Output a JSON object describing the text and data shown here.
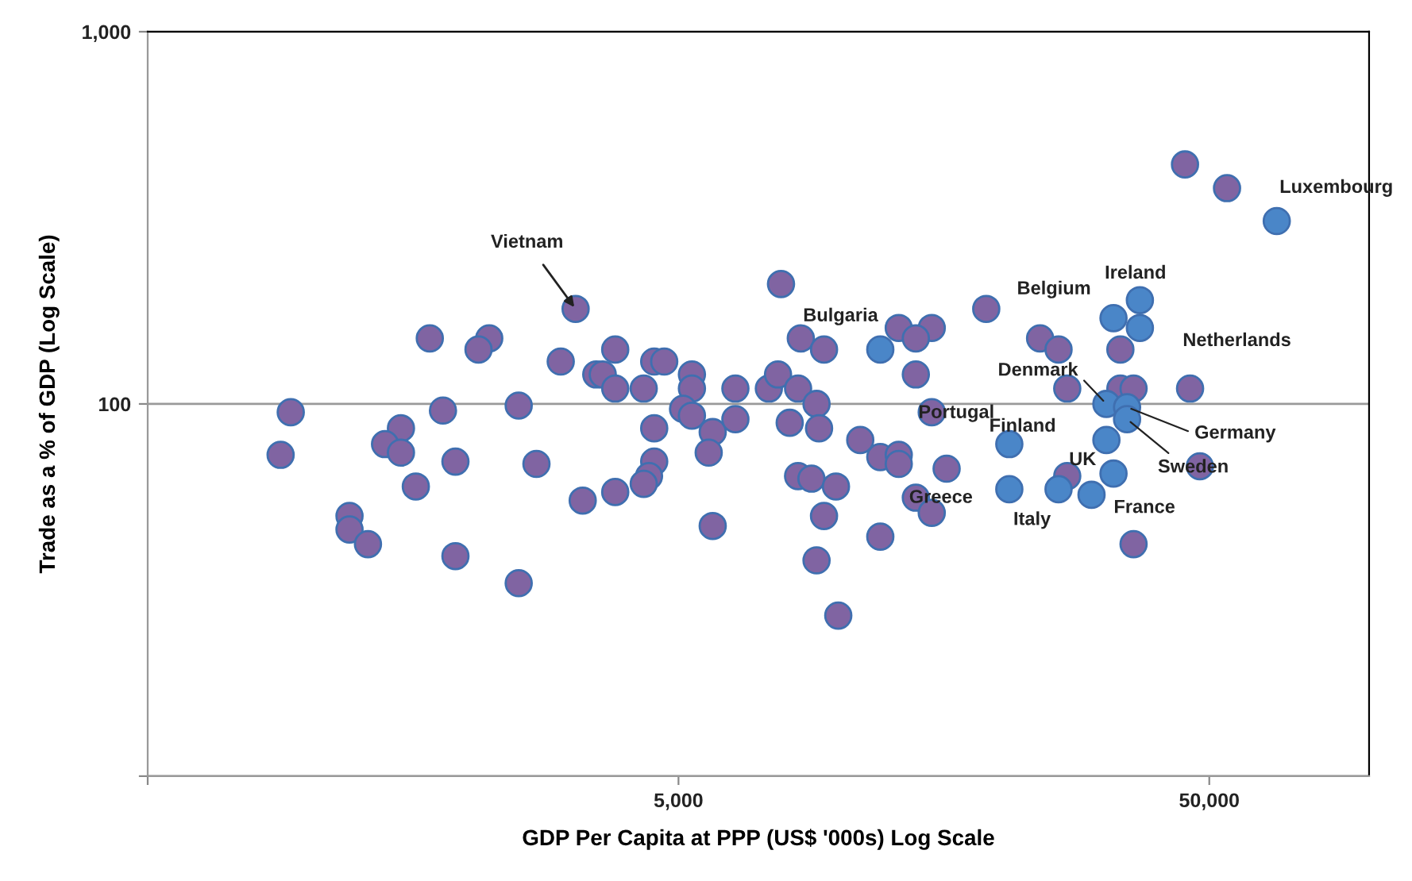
{
  "chart_data": {
    "type": "scatter",
    "xlabel": "GDP Per Capita at PPP (US$ '000s) Log Scale",
    "ylabel": "Trade as a % of GDP (Log Scale)",
    "log": "xy",
    "xlim": [
      500,
      100000
    ],
    "xticks": [
      {
        "value": 500,
        "label": null
      },
      {
        "value": 5000,
        "label": "5,000"
      },
      {
        "value": 50000,
        "label": "50,000"
      }
    ],
    "ylim": [
      10,
      1000
    ],
    "yticks": [
      {
        "value": 10,
        "label": null
      },
      {
        "value": 100,
        "label": "100"
      },
      {
        "value": 1000,
        "label": "1,000"
      }
    ],
    "grid": "y",
    "marker": "circle",
    "series": [
      {
        "color": "#8064a2",
        "x": [
          3200,
          1700,
          2200,
          2100,
          3000,
          3800,
          3500,
          3600,
          3800,
          4500,
          4700,
          4300,
          5300,
          5300,
          6400,
          930,
          1800,
          2500,
          5100,
          5300,
          1500,
          1400,
          1500,
          890,
          1900,
          2700,
          4500,
          5800,
          6400,
          4500,
          5700,
          4400,
          4300,
          1600,
          3800,
          3300,
          1200,
          1200,
          1300,
          1900,
          5800,
          2500,
          7800,
          8500,
          9400,
          13000,
          15000,
          14000,
          19000,
          14000,
          7400,
          7700,
          8400,
          9100,
          8100,
          9200,
          15000,
          11000,
          12000,
          13000,
          13000,
          8400,
          8900,
          9900,
          16000,
          14000,
          15000,
          9400,
          12000,
          9100,
          10000,
          45000,
          54000,
          24000,
          26000,
          34000,
          27000,
          34000,
          36000,
          46000,
          48000,
          27000,
          36000
        ],
        "values": [
          180,
          150,
          150,
          140,
          130,
          140,
          120,
          120,
          110,
          130,
          130,
          110,
          120,
          110,
          110,
          95,
          96,
          99,
          97,
          93,
          86,
          78,
          74,
          73,
          70,
          69,
          86,
          84,
          91,
          70,
          74,
          64,
          61,
          60,
          58,
          55,
          50,
          46,
          42,
          39,
          47,
          33,
          210,
          150,
          140,
          160,
          160,
          150,
          180,
          120,
          110,
          120,
          110,
          100,
          89,
          86,
          95,
          80,
          72,
          73,
          69,
          64,
          63,
          60,
          67,
          56,
          51,
          50,
          44,
          38,
          27,
          440,
          380,
          150,
          140,
          140,
          110,
          110,
          110,
          110,
          68,
          64,
          42
        ]
      },
      {
        "color": "#4a86c8",
        "x": [
          12000,
          67000,
          37000,
          33000,
          37000,
          32000,
          35000,
          35000,
          32000,
          21000,
          33000,
          26000,
          30000,
          21000
        ],
        "values": [
          140,
          310,
          190,
          170,
          160,
          100,
          98,
          91,
          80,
          78,
          65,
          59,
          57,
          59
        ]
      }
    ],
    "annotations": [
      {
        "text": "Vietnam",
        "x": 3200,
        "y": 180
      },
      {
        "text": "Bulgaria",
        "x": 12000,
        "y": 140
      },
      {
        "text": "Luxembourg",
        "x": 67000,
        "y": 310
      },
      {
        "text": "Ireland",
        "x": 37000,
        "y": 190
      },
      {
        "text": "Belgium",
        "x": 33000,
        "y": 170
      },
      {
        "text": "Netherlands",
        "x": 37000,
        "y": 160
      },
      {
        "text": "Denmark",
        "x": 32000,
        "y": 100
      },
      {
        "text": "Germany",
        "x": 35000,
        "y": 98
      },
      {
        "text": "Sweden",
        "x": 35000,
        "y": 91
      },
      {
        "text": "Finland",
        "x": 32000,
        "y": 80
      },
      {
        "text": "Portugal",
        "x": 21000,
        "y": 78
      },
      {
        "text": "UK",
        "x": 33000,
        "y": 65
      },
      {
        "text": "Italy",
        "x": 26000,
        "y": 59
      },
      {
        "text": "France",
        "x": 30000,
        "y": 57
      },
      {
        "text": "Greece",
        "x": 21000,
        "y": 59
      }
    ]
  }
}
